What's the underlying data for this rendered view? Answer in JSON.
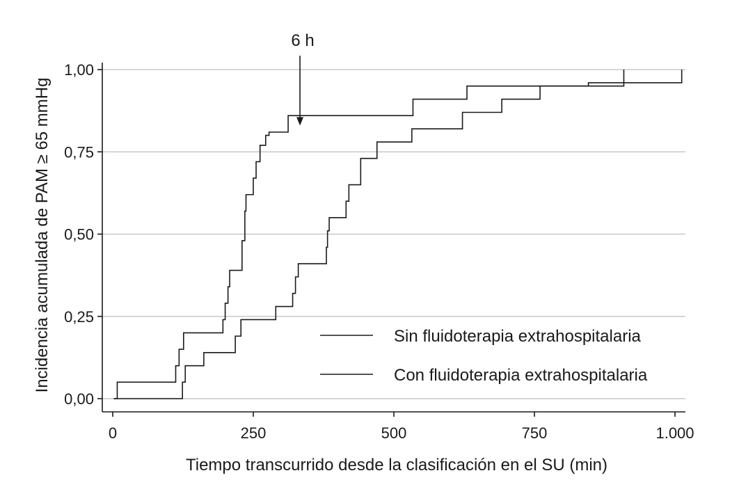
{
  "chart_data": {
    "type": "line",
    "step": true,
    "title": "",
    "xlabel": "Tiempo transcurrido desde la clasificación en el SU (min)",
    "ylabel": "Incidencia acumulada de PAM ≥ 65 mmHg",
    "xlim": [
      0,
      1010
    ],
    "ylim": [
      0,
      1
    ],
    "xticks": [
      0,
      250,
      500,
      750,
      1000
    ],
    "xtick_labels": [
      "0",
      "250",
      "500",
      "750",
      "1.000"
    ],
    "yticks": [
      0,
      0.25,
      0.5,
      0.75,
      1
    ],
    "ytick_labels": [
      "0,00",
      "0,25",
      "0,50",
      "0,75",
      "1,00"
    ],
    "grid": "horizontal",
    "legend_position": "bottom-right",
    "annotation": {
      "text": "6 h",
      "x": 333,
      "y_tip": 0.83
    },
    "series": [
      {
        "name": "Sin fluidoterapia extrahospitalaria",
        "x": [
          4,
          8,
          112,
          118,
          126,
          196,
          200,
          205,
          208,
          230,
          235,
          237,
          250,
          255,
          262,
          272,
          278,
          312,
          414,
          534,
          630,
          909
        ],
        "y": [
          0.0,
          0.05,
          0.1,
          0.15,
          0.2,
          0.24,
          0.29,
          0.34,
          0.39,
          0.48,
          0.57,
          0.62,
          0.67,
          0.72,
          0.77,
          0.8,
          0.81,
          0.86,
          0.86,
          0.91,
          0.95,
          1.0
        ]
      },
      {
        "name": "Con fluidoterapia extrahospitalaria",
        "x": [
          124,
          129,
          162,
          218,
          228,
          290,
          320,
          325,
          330,
          380,
          382,
          385,
          415,
          420,
          441,
          470,
          532,
          622,
          692,
          760,
          846,
          1012
        ],
        "y": [
          0.05,
          0.1,
          0.14,
          0.19,
          0.24,
          0.28,
          0.32,
          0.37,
          0.41,
          0.46,
          0.51,
          0.55,
          0.6,
          0.65,
          0.73,
          0.78,
          0.82,
          0.87,
          0.91,
          0.95,
          0.96,
          1.0
        ]
      }
    ],
    "series_start": [
      {
        "x0": 2,
        "y0": 0.0
      },
      {
        "x0": 2,
        "y0": 0.0
      }
    ]
  }
}
